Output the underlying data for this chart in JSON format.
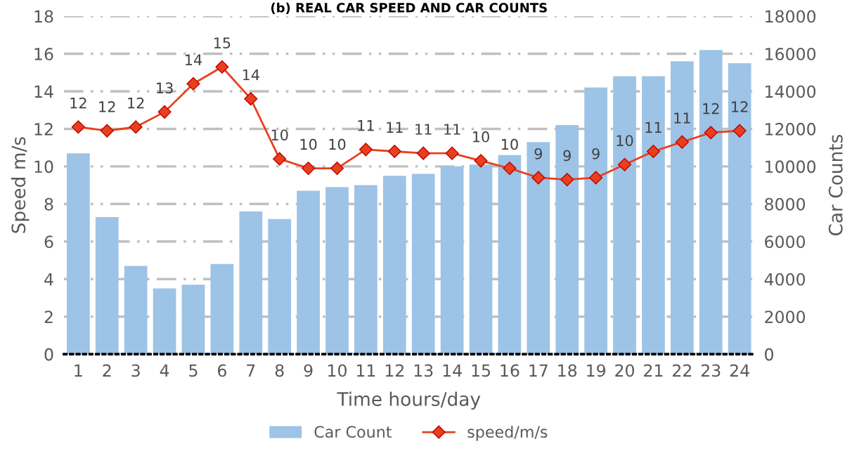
{
  "chart_data": {
    "type": "bar",
    "title": "(b) REAL CAR SPEED AND CAR COUNTS",
    "categories": [
      "1",
      "2",
      "3",
      "4",
      "5",
      "6",
      "7",
      "8",
      "9",
      "10",
      "11",
      "12",
      "13",
      "14",
      "15",
      "16",
      "17",
      "18",
      "19",
      "20",
      "21",
      "22",
      "23",
      "24"
    ],
    "series": [
      {
        "name": "Car Count",
        "axis": "y2",
        "color": "#9dc3e6",
        "values": [
          10700,
          7300,
          4700,
          3500,
          3700,
          4800,
          7600,
          7200,
          8700,
          8900,
          9000,
          9500,
          9600,
          10000,
          10100,
          10600,
          11300,
          12200,
          14200,
          14800,
          14800,
          15600,
          16200,
          15500
        ]
      },
      {
        "name": "speed/m/s",
        "type": "line",
        "axis": "y",
        "color": "#e8401c",
        "marker": "diamond",
        "line_style": "solid",
        "values": [
          12.1,
          11.9,
          12.1,
          12.9,
          14.4,
          15.3,
          13.6,
          10.4,
          9.9,
          9.9,
          10.9,
          10.8,
          10.7,
          10.7,
          10.3,
          9.9,
          9.4,
          9.3,
          9.4,
          10.1,
          10.8,
          11.3,
          11.8,
          11.9
        ],
        "value_labels": [
          "12",
          "12",
          "12",
          "13",
          "14",
          "15",
          "14",
          "10",
          "10",
          "10",
          "11",
          "11",
          "11",
          "11",
          "10",
          "10",
          "9",
          "9",
          "9",
          "10",
          "11",
          "11",
          "12",
          "12"
        ]
      }
    ],
    "xlabel": "Time hours/day",
    "ylabel": "Speed m/s",
    "y2label": "Car Counts",
    "ylim": [
      0,
      18
    ],
    "yticks": [
      0,
      2,
      4,
      6,
      8,
      10,
      12,
      14,
      16,
      18
    ],
    "y2lim": [
      0,
      18000
    ],
    "y2ticks": [
      0,
      2000,
      4000,
      6000,
      8000,
      10000,
      12000,
      14000,
      16000,
      18000
    ],
    "grid": "y",
    "legend": "bottom"
  }
}
